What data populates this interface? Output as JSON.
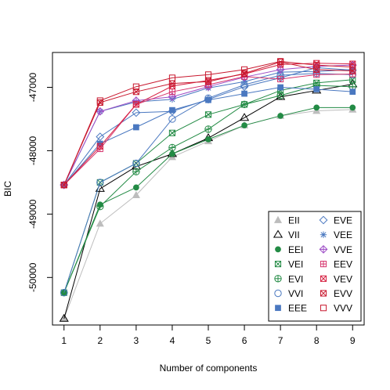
{
  "chart_data": {
    "type": "line",
    "title": "",
    "xlabel": "Number of components",
    "ylabel": "BIC",
    "x": [
      1,
      2,
      3,
      4,
      5,
      6,
      7,
      8,
      9
    ],
    "xlim": [
      0.68,
      9.32
    ],
    "ylim": [
      -50750,
      -46450
    ],
    "xticks": [
      "1",
      "2",
      "3",
      "4",
      "5",
      "6",
      "7",
      "8",
      "9"
    ],
    "yticks": [
      -50000,
      -49000,
      -48000,
      -47000
    ],
    "ytick_labels": [
      "-50000",
      "-49000",
      "-48000",
      "-47000"
    ],
    "grid": false,
    "legend_position": "bottom-right",
    "series": [
      {
        "name": "EII",
        "color": "#bdbdbd",
        "marker": "triangle-filled",
        "values": [
          -50650,
          -49150,
          -48700,
          -48100,
          -47850,
          -47600,
          -47450,
          -47370,
          -47350
        ]
      },
      {
        "name": "VII",
        "color": "#000000",
        "marker": "triangle-open",
        "values": [
          -50650,
          -48600,
          -48250,
          -48050,
          -47800,
          -47480,
          -47150,
          -47050,
          -46950
        ]
      },
      {
        "name": "EEI",
        "color": "#238b45",
        "marker": "circle-filled",
        "values": [
          -50240,
          -48850,
          -48580,
          -48050,
          -47820,
          -47600,
          -47450,
          -47320,
          -47320
        ]
      },
      {
        "name": "VEI",
        "color": "#238b45",
        "marker": "square-x",
        "values": [
          -50240,
          -48500,
          -48200,
          -47720,
          -47430,
          -47270,
          -47050,
          -46930,
          -46880
        ]
      },
      {
        "name": "EVI",
        "color": "#238b45",
        "marker": "circle-plus",
        "values": [
          -50240,
          -48880,
          -48330,
          -47950,
          -47660,
          -47270,
          -47130,
          -46970,
          -46990
        ]
      },
      {
        "name": "VVI",
        "color": "#4a78c0",
        "marker": "circle-open",
        "values": [
          -50240,
          -48500,
          -48200,
          -47500,
          -47170,
          -46960,
          -46810,
          -46780,
          -46800
        ]
      },
      {
        "name": "EEE",
        "color": "#4a78c0",
        "marker": "square-filled",
        "values": [
          -48540,
          -47890,
          -47630,
          -47360,
          -47200,
          -47100,
          -47000,
          -47030,
          -47070
        ]
      },
      {
        "name": "EVE",
        "color": "#4a78c0",
        "marker": "diamond-open",
        "values": [
          -48540,
          -47780,
          -47400,
          -47380,
          -47190,
          -46990,
          -46850,
          -46690,
          -46730
        ]
      },
      {
        "name": "VEE",
        "color": "#4a78c0",
        "marker": "asterisk",
        "values": [
          -48540,
          -47380,
          -47230,
          -47190,
          -47010,
          -46910,
          -46760,
          -46750,
          -46720
        ]
      },
      {
        "name": "VVE",
        "color": "#9e4ec6",
        "marker": "diamond-plus",
        "values": [
          -48540,
          -47380,
          -47210,
          -47150,
          -46990,
          -46840,
          -46720,
          -46670,
          -46650
        ]
      },
      {
        "name": "EEV",
        "color": "#d6336c",
        "marker": "square-plus",
        "values": [
          -48540,
          -47970,
          -47270,
          -47070,
          -46960,
          -46830,
          -46870,
          -46800,
          -46790
        ]
      },
      {
        "name": "VEV",
        "color": "#d62040",
        "marker": "square-x",
        "values": [
          -48540,
          -47930,
          -47270,
          -46980,
          -46890,
          -46790,
          -46640,
          -46620,
          -46630
        ]
      },
      {
        "name": "EVV",
        "color": "#c8182e",
        "marker": "square-x",
        "values": [
          -48540,
          -47240,
          -47070,
          -46940,
          -46910,
          -46780,
          -46600,
          -46720,
          -46740
        ]
      },
      {
        "name": "VVV",
        "color": "#c8182e",
        "marker": "square-open",
        "values": [
          -48540,
          -47210,
          -46990,
          -46850,
          -46800,
          -46720,
          -46590,
          -46650,
          -46680
        ]
      }
    ]
  }
}
